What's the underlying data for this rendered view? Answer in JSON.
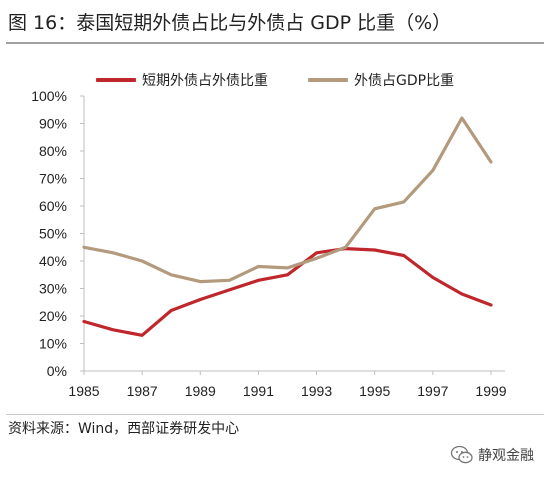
{
  "figure": {
    "title": "图 16：泰国短期外债占比与外债占 GDP 比重（%）",
    "source": "资料来源：Wind，西部证券研发中心"
  },
  "watermark": {
    "text": "静观金融",
    "icon": "wechat-icon"
  },
  "colors": {
    "short_term": "#c0272d",
    "gdp_ratio": "#b39a7c",
    "axis": "#bfbfbf"
  },
  "chart_data": {
    "type": "line",
    "title": "图 16：泰国短期外债占比与外债占 GDP 比重（%）",
    "xlabel": "",
    "ylabel": "",
    "x": [
      1985,
      1986,
      1987,
      1988,
      1989,
      1990,
      1991,
      1992,
      1993,
      1994,
      1995,
      1996,
      1997,
      1998,
      1999
    ],
    "x_tick_labels": [
      "1985",
      "1987",
      "1989",
      "1991",
      "1993",
      "1995",
      "1997",
      "1999"
    ],
    "xlim": [
      1985,
      1999
    ],
    "ylim": [
      0,
      100
    ],
    "y_tick_labels": [
      "0%",
      "10%",
      "20%",
      "30%",
      "40%",
      "50%",
      "60%",
      "70%",
      "80%",
      "90%",
      "100%"
    ],
    "grid": false,
    "legend_position": "top",
    "series": [
      {
        "name": "短期外债占外债比重",
        "color": "#c0272d",
        "values": [
          18,
          15,
          13,
          22,
          26,
          29.5,
          33,
          35,
          43,
          44.5,
          44,
          42,
          34,
          28,
          24
        ]
      },
      {
        "name": "外债占GDP比重",
        "color": "#b39a7c",
        "values": [
          45,
          43,
          40,
          35,
          32.5,
          33,
          38,
          37.5,
          41,
          45,
          59,
          61.5,
          73,
          92,
          76
        ]
      }
    ]
  }
}
